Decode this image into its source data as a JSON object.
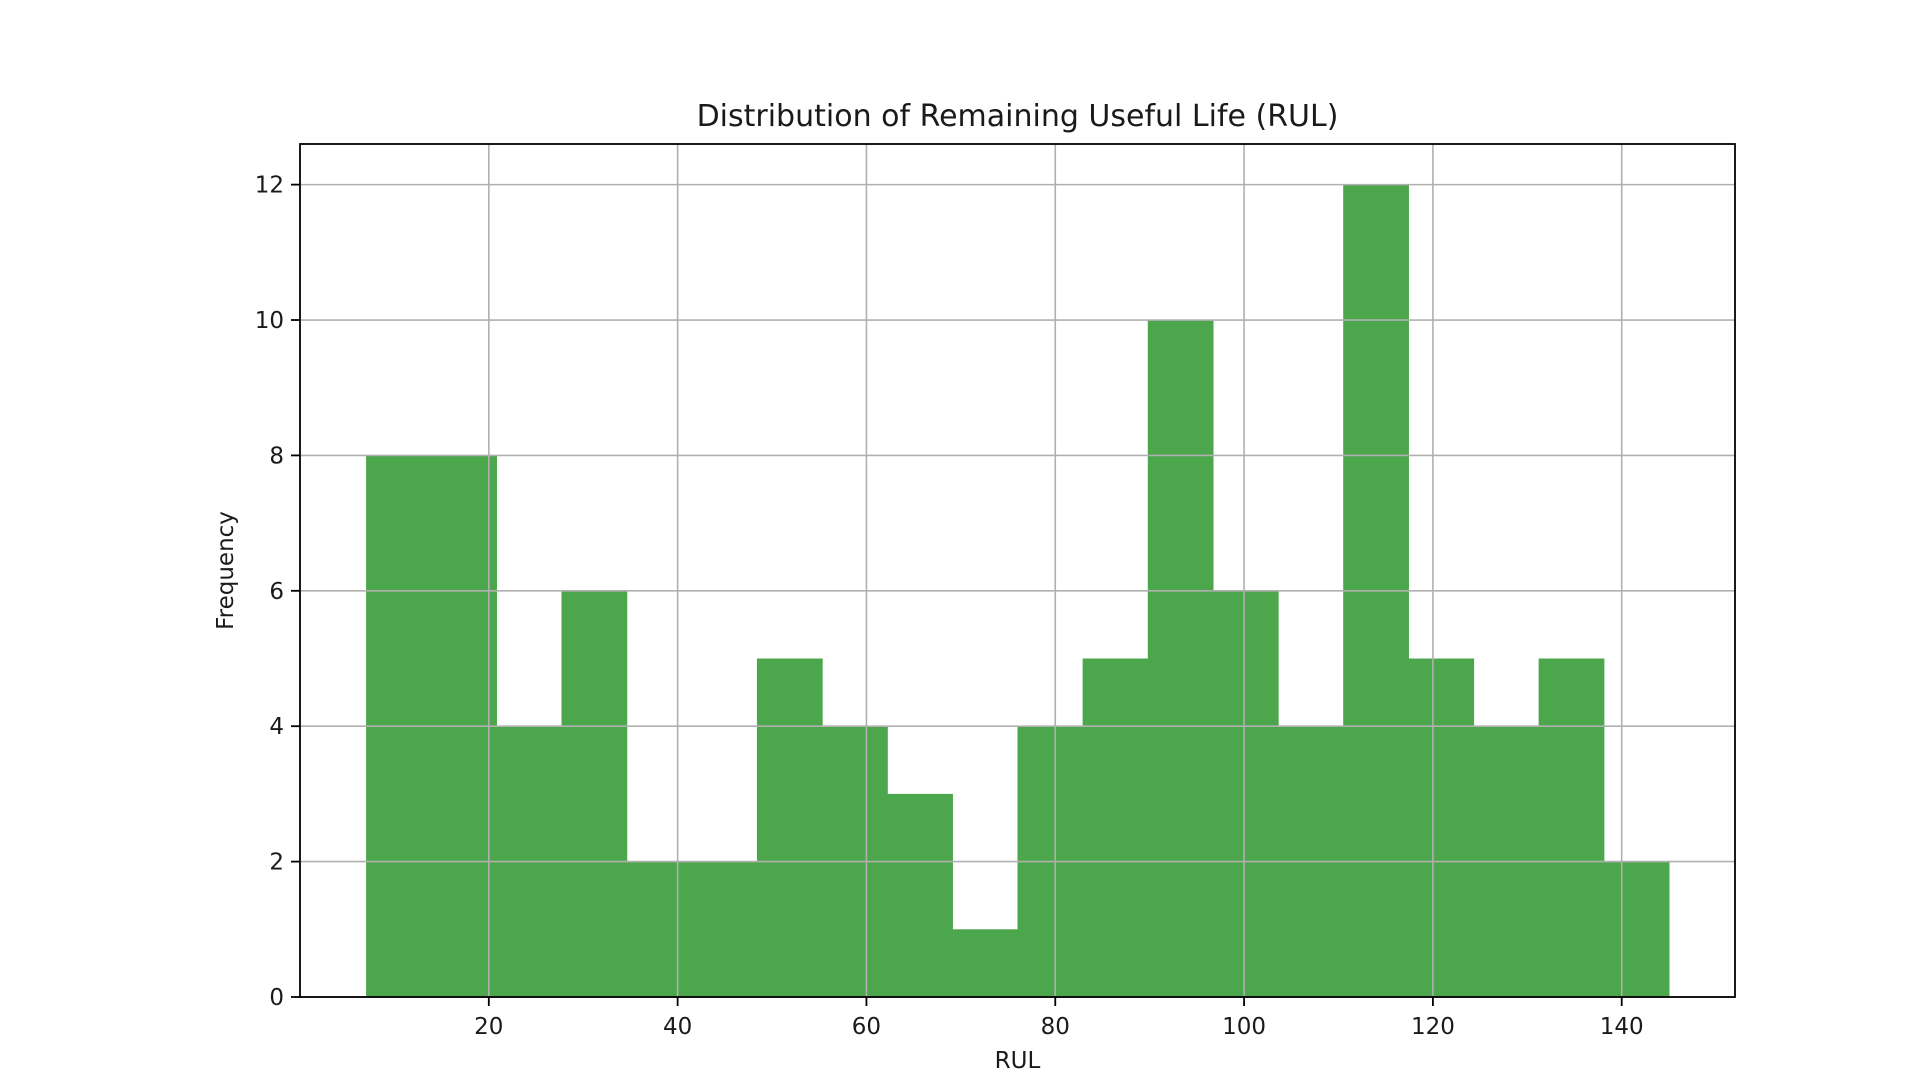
{
  "chart_data": {
    "type": "bar",
    "subtype": "histogram",
    "title": "Distribution of Remaining Useful Life (RUL)",
    "xlabel": "RUL",
    "ylabel": "Frequency",
    "xlim": [
      0,
      152
    ],
    "ylim": [
      0,
      12.6
    ],
    "xticks": [
      20,
      40,
      60,
      80,
      100,
      120,
      140
    ],
    "yticks": [
      0,
      2,
      4,
      6,
      8,
      10,
      12
    ],
    "grid": true,
    "bar_color": "#4ca64c",
    "bins": [
      {
        "x0": 7.0,
        "x1": 13.9,
        "count": 8
      },
      {
        "x0": 13.9,
        "x1": 20.8,
        "count": 8
      },
      {
        "x0": 20.8,
        "x1": 27.7,
        "count": 4
      },
      {
        "x0": 27.7,
        "x1": 34.6,
        "count": 6
      },
      {
        "x0": 34.6,
        "x1": 41.5,
        "count": 2
      },
      {
        "x0": 41.5,
        "x1": 48.4,
        "count": 2
      },
      {
        "x0": 48.4,
        "x1": 55.3,
        "count": 5
      },
      {
        "x0": 55.3,
        "x1": 62.2,
        "count": 4
      },
      {
        "x0": 62.2,
        "x1": 69.1,
        "count": 3
      },
      {
        "x0": 69.1,
        "x1": 76.0,
        "count": 1
      },
      {
        "x0": 76.0,
        "x1": 82.9,
        "count": 4
      },
      {
        "x0": 82.9,
        "x1": 89.8,
        "count": 5
      },
      {
        "x0": 89.8,
        "x1": 96.7,
        "count": 10
      },
      {
        "x0": 96.7,
        "x1": 103.6,
        "count": 6
      },
      {
        "x0": 103.6,
        "x1": 110.5,
        "count": 4
      },
      {
        "x0": 110.5,
        "x1": 117.4,
        "count": 12
      },
      {
        "x0": 117.4,
        "x1": 124.3,
        "count": 5
      },
      {
        "x0": 124.3,
        "x1": 131.2,
        "count": 4
      },
      {
        "x0": 131.2,
        "x1": 138.1,
        "count": 5
      },
      {
        "x0": 138.1,
        "x1": 145.0,
        "count": 2
      }
    ]
  }
}
